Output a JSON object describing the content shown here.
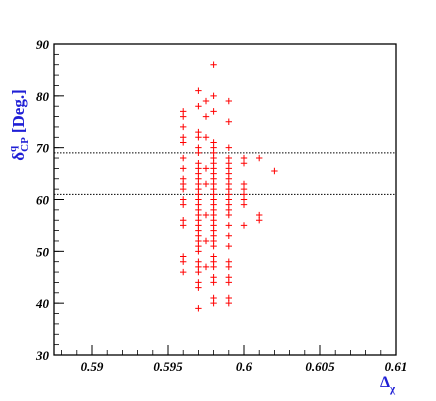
{
  "chart_data": {
    "type": "scatter",
    "xlabel": "Δ",
    "xlabel_sub": "χ",
    "ylabel": "δ",
    "ylabel_sup": "q",
    "ylabel_sub": "CP",
    "ylabel_unit": "[Deg.]",
    "xlim": [
      0.5875,
      0.61
    ],
    "ylim": [
      30,
      90
    ],
    "x_ticks": [
      0.59,
      0.595,
      0.6,
      0.605,
      0.61
    ],
    "x_tick_labels": [
      "0.59",
      "0.595",
      "0.6",
      "0.605",
      "0.61"
    ],
    "y_ticks": [
      30,
      40,
      50,
      60,
      70,
      80,
      90
    ],
    "y_tick_labels": [
      "30",
      "40",
      "50",
      "60",
      "70",
      "80",
      "90"
    ],
    "reference_lines_y": [
      69,
      61
    ],
    "marker": "+",
    "marker_color": "#ff0000",
    "points": [
      [
        0.596,
        77
      ],
      [
        0.596,
        76
      ],
      [
        0.596,
        74
      ],
      [
        0.596,
        72
      ],
      [
        0.596,
        71
      ],
      [
        0.596,
        68
      ],
      [
        0.596,
        66
      ],
      [
        0.596,
        64
      ],
      [
        0.596,
        63
      ],
      [
        0.596,
        62
      ],
      [
        0.596,
        60
      ],
      [
        0.596,
        59
      ],
      [
        0.596,
        56
      ],
      [
        0.596,
        55
      ],
      [
        0.596,
        49
      ],
      [
        0.596,
        48
      ],
      [
        0.596,
        46
      ],
      [
        0.597,
        81
      ],
      [
        0.597,
        78
      ],
      [
        0.597,
        73
      ],
      [
        0.597,
        72
      ],
      [
        0.597,
        70
      ],
      [
        0.597,
        69
      ],
      [
        0.597,
        67
      ],
      [
        0.597,
        66
      ],
      [
        0.597,
        65
      ],
      [
        0.597,
        64
      ],
      [
        0.597,
        63
      ],
      [
        0.597,
        62
      ],
      [
        0.597,
        61
      ],
      [
        0.597,
        60
      ],
      [
        0.597,
        59
      ],
      [
        0.597,
        58
      ],
      [
        0.597,
        57
      ],
      [
        0.597,
        56
      ],
      [
        0.597,
        55
      ],
      [
        0.597,
        54
      ],
      [
        0.597,
        53
      ],
      [
        0.597,
        52
      ],
      [
        0.597,
        51
      ],
      [
        0.597,
        50
      ],
      [
        0.597,
        48
      ],
      [
        0.597,
        47
      ],
      [
        0.597,
        46
      ],
      [
        0.597,
        44
      ],
      [
        0.597,
        43
      ],
      [
        0.597,
        39
      ],
      [
        0.5975,
        79
      ],
      [
        0.5975,
        76
      ],
      [
        0.5975,
        72
      ],
      [
        0.5975,
        66
      ],
      [
        0.5975,
        63
      ],
      [
        0.5975,
        57
      ],
      [
        0.5975,
        52
      ],
      [
        0.5975,
        47
      ],
      [
        0.598,
        86
      ],
      [
        0.598,
        80
      ],
      [
        0.598,
        77
      ],
      [
        0.598,
        71
      ],
      [
        0.598,
        70
      ],
      [
        0.598,
        69
      ],
      [
        0.598,
        68
      ],
      [
        0.598,
        67
      ],
      [
        0.598,
        66
      ],
      [
        0.598,
        65
      ],
      [
        0.598,
        64
      ],
      [
        0.598,
        63
      ],
      [
        0.598,
        62
      ],
      [
        0.598,
        61
      ],
      [
        0.598,
        60
      ],
      [
        0.598,
        59
      ],
      [
        0.598,
        58
      ],
      [
        0.598,
        57
      ],
      [
        0.598,
        56
      ],
      [
        0.598,
        55
      ],
      [
        0.598,
        54
      ],
      [
        0.598,
        53
      ],
      [
        0.598,
        52
      ],
      [
        0.598,
        51
      ],
      [
        0.598,
        49
      ],
      [
        0.598,
        48
      ],
      [
        0.598,
        47
      ],
      [
        0.598,
        45
      ],
      [
        0.598,
        44
      ],
      [
        0.598,
        41
      ],
      [
        0.598,
        40
      ],
      [
        0.599,
        79
      ],
      [
        0.599,
        75
      ],
      [
        0.599,
        70
      ],
      [
        0.599,
        68
      ],
      [
        0.599,
        67
      ],
      [
        0.599,
        66
      ],
      [
        0.599,
        65
      ],
      [
        0.599,
        64
      ],
      [
        0.599,
        63
      ],
      [
        0.599,
        62
      ],
      [
        0.599,
        61
      ],
      [
        0.599,
        60
      ],
      [
        0.599,
        59
      ],
      [
        0.599,
        58
      ],
      [
        0.599,
        57
      ],
      [
        0.599,
        55
      ],
      [
        0.599,
        53
      ],
      [
        0.599,
        51
      ],
      [
        0.599,
        48
      ],
      [
        0.599,
        47
      ],
      [
        0.599,
        45
      ],
      [
        0.599,
        44
      ],
      [
        0.599,
        41
      ],
      [
        0.599,
        40
      ],
      [
        0.6,
        68
      ],
      [
        0.6,
        67
      ],
      [
        0.6,
        63
      ],
      [
        0.6,
        62
      ],
      [
        0.6,
        61
      ],
      [
        0.6,
        60
      ],
      [
        0.6,
        59
      ],
      [
        0.6,
        55
      ],
      [
        0.601,
        68
      ],
      [
        0.601,
        57
      ],
      [
        0.601,
        56
      ],
      [
        0.602,
        65.5
      ]
    ]
  }
}
